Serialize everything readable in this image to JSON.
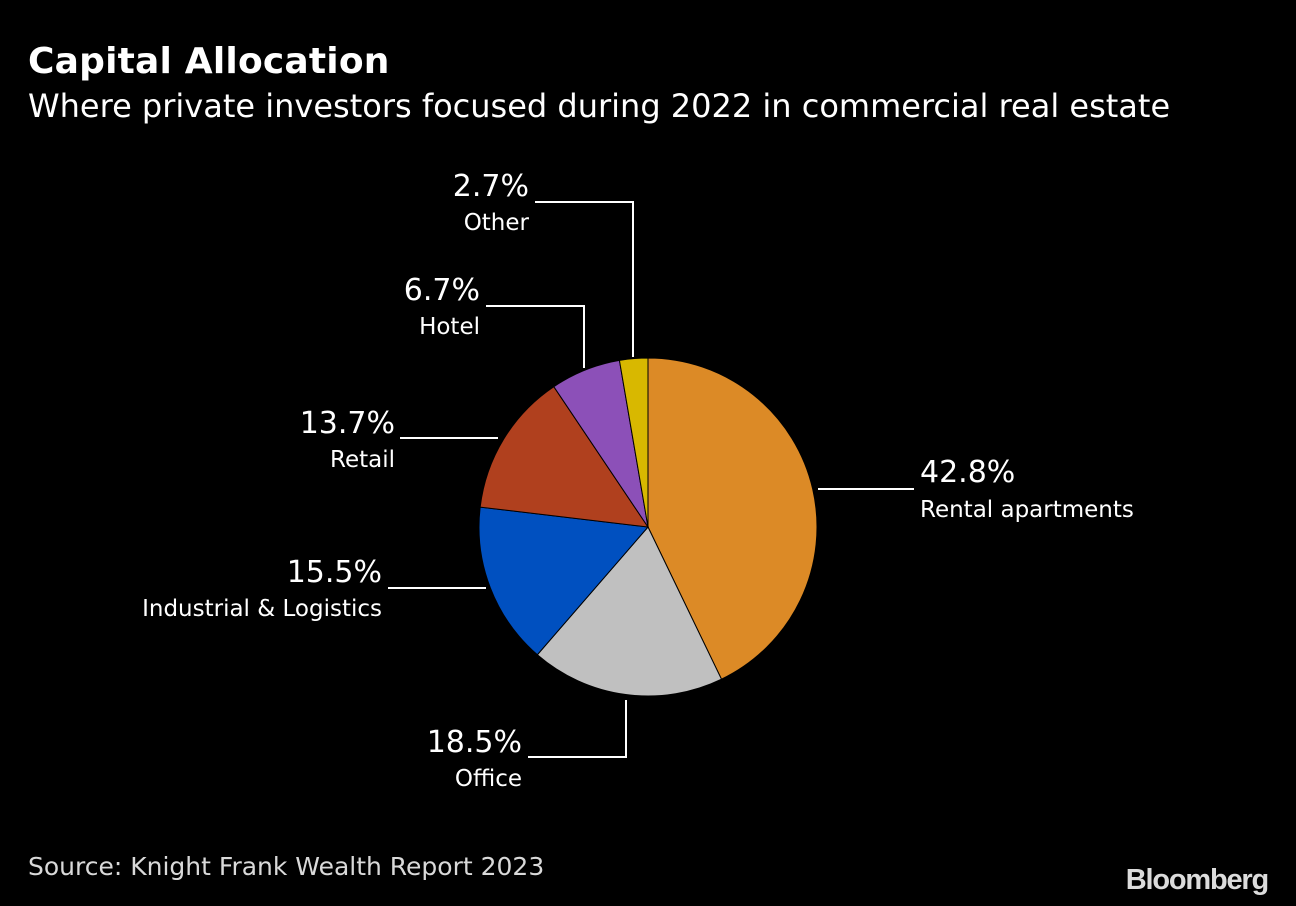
{
  "header": {
    "title": "Capital Allocation",
    "subtitle": "Where private investors focused during 2022 in commercial real estate"
  },
  "footer": {
    "source": "Source: Knight Frank Wealth Report 2023",
    "logo": "Bloomberg"
  },
  "chart_data": {
    "type": "pie",
    "title": "Capital Allocation",
    "subtitle": "Where private investors focused during 2022 in commercial real estate",
    "start": "12 o'clock",
    "direction": "clockwise",
    "slices": [
      {
        "label": "Rental apartments",
        "value": 42.8,
        "display": "42.8%",
        "color": "#dc8a26"
      },
      {
        "label": "Office",
        "value": 18.5,
        "display": "18.5%",
        "color": "#c0c0c0"
      },
      {
        "label": "Industrial & Logistics",
        "value": 15.5,
        "display": "15.5%",
        "color": "#0050c0"
      },
      {
        "label": "Retail",
        "value": 13.7,
        "display": "13.7%",
        "color": "#b0401e"
      },
      {
        "label": "Hotel",
        "value": 6.7,
        "display": "6.7%",
        "color": "#8c50b8"
      },
      {
        "label": "Other",
        "value": 2.7,
        "display": "2.7%",
        "color": "#d8b800"
      }
    ]
  }
}
